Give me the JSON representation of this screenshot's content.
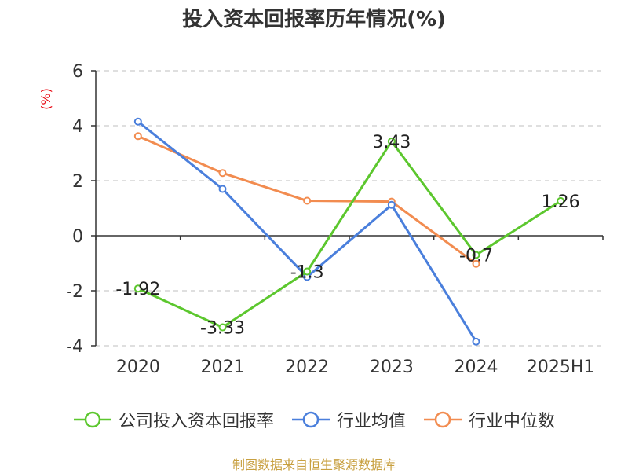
{
  "title": "投入资本回报率历年情况(%)",
  "source_note": "制图数据来自恒生聚源数据库",
  "colors": {
    "text": "#333333",
    "unit": "#e8000b",
    "source": "#c8a040",
    "axis": "#333333",
    "grid": "#cccccc"
  },
  "chart_data": {
    "type": "line",
    "title": "投入资本回报率历年情况(%)",
    "ylabel": "(%)",
    "xlabel": "",
    "categories": [
      "2020",
      "2021",
      "2022",
      "2023",
      "2024",
      "2025H1"
    ],
    "ylim": [
      -4,
      6
    ],
    "yticks": [
      -4,
      -2,
      0,
      2,
      4,
      6
    ],
    "grid": true,
    "legend_position": "bottom",
    "series": [
      {
        "name": "公司投入资本回报率",
        "color": "#5cc72e",
        "values": [
          -1.92,
          -3.33,
          -1.3,
          3.43,
          -0.7,
          1.26
        ],
        "data_labels": [
          "-1.92",
          "-3.33",
          "-1.3",
          "3.43",
          "-0.7",
          "1.26"
        ]
      },
      {
        "name": "行业均值",
        "color": "#4a7fdc",
        "values": [
          4.15,
          1.7,
          -1.5,
          1.12,
          -3.85,
          null
        ]
      },
      {
        "name": "行业中位数",
        "color": "#f28c50",
        "values": [
          3.62,
          2.28,
          1.27,
          1.24,
          -1.02,
          null
        ]
      }
    ]
  }
}
